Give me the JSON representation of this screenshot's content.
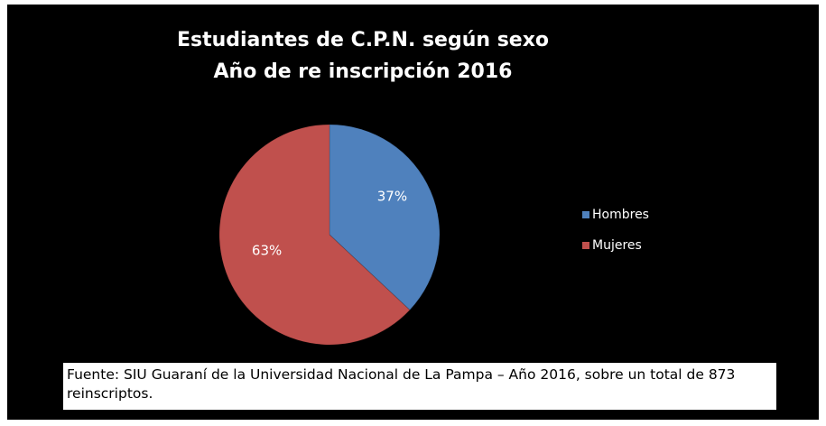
{
  "chart_data": {
    "type": "pie",
    "title": "Estudiantes de C.P.N. según sexo",
    "subtitle": "Año de re inscripción 2016",
    "categories": [
      "Hombres",
      "Mujeres"
    ],
    "values": [
      37,
      63
    ],
    "value_labels": [
      "37%",
      "63%"
    ],
    "colors": [
      "#4f81bd",
      "#c0504d"
    ],
    "legend": "right",
    "note": "Fuente: SIU Guaraní de la Universidad Nacional de La Pampa – Año 2016, sobre un total de 873 reinscriptos."
  }
}
